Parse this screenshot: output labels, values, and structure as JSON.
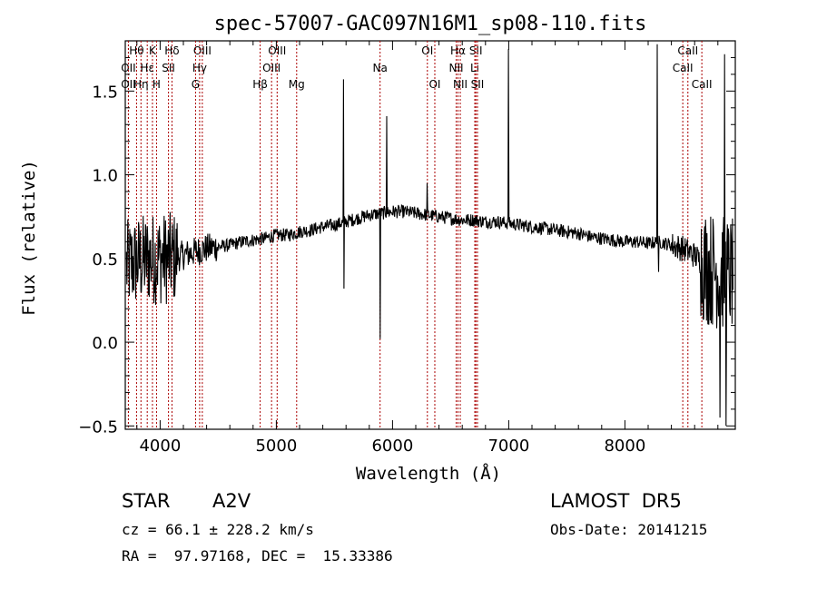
{
  "chart_data": {
    "type": "line",
    "title": "spec-57007-GAC097N16M1_sp08-110.fits",
    "xlabel": "Wavelength (Å)",
    "ylabel": "Flux (relative)",
    "xlim": [
      3700,
      8950
    ],
    "ylim": [
      -0.52,
      1.8
    ],
    "xticks": [
      4000,
      5000,
      6000,
      7000,
      8000
    ],
    "yticks": [
      -0.5,
      0.0,
      0.5,
      1.0,
      1.5
    ],
    "xtick_labels": [
      "4000",
      "5000",
      "6000",
      "7000",
      "8000"
    ],
    "ytick_labels": [
      "−0.5",
      "0.0",
      "0.5",
      "1.0",
      "1.5"
    ],
    "grid": false,
    "line_color": "#000000",
    "marker_color": "#aa0000",
    "continuum": {
      "x": [
        3700,
        3800,
        3900,
        4000,
        4100,
        4200,
        4300,
        4400,
        4500,
        4600,
        4700,
        4800,
        4900,
        5000,
        5100,
        5200,
        5300,
        5400,
        5500,
        5600,
        5700,
        5800,
        5900,
        6000,
        6100,
        6200,
        6300,
        6400,
        6500,
        6600,
        6700,
        6800,
        6900,
        7000,
        7100,
        7200,
        7300,
        7400,
        7500,
        7600,
        7700,
        7800,
        7900,
        8000,
        8100,
        8200,
        8300,
        8400,
        8500,
        8600,
        8700,
        8800,
        8900
      ],
      "y": [
        0.45,
        0.48,
        0.5,
        0.5,
        0.5,
        0.52,
        0.54,
        0.56,
        0.57,
        0.58,
        0.6,
        0.61,
        0.62,
        0.64,
        0.64,
        0.66,
        0.67,
        0.69,
        0.7,
        0.72,
        0.74,
        0.76,
        0.77,
        0.78,
        0.78,
        0.77,
        0.76,
        0.75,
        0.74,
        0.73,
        0.73,
        0.72,
        0.72,
        0.71,
        0.7,
        0.69,
        0.68,
        0.67,
        0.66,
        0.65,
        0.63,
        0.62,
        0.61,
        0.6,
        0.6,
        0.59,
        0.6,
        0.58,
        0.56,
        0.52,
        0.45,
        0.42,
        0.4
      ]
    },
    "spikes": [
      {
        "x": 5577,
        "y": 1.57
      },
      {
        "x": 5583,
        "y": 0.32
      },
      {
        "x": 5893,
        "y": 0.02
      },
      {
        "x": 5950,
        "y": 1.35
      },
      {
        "x": 6300,
        "y": 0.95
      },
      {
        "x": 7000,
        "y": 1.75
      },
      {
        "x": 8280,
        "y": 1.78
      },
      {
        "x": 8290,
        "y": 0.42
      },
      {
        "x": 8820,
        "y": -0.45
      },
      {
        "x": 8860,
        "y": 1.72
      },
      {
        "x": 8870,
        "y": -0.5
      }
    ],
    "line_markers": [
      {
        "label": "Hθ",
        "x": 3797,
        "row": 0
      },
      {
        "label": "OII",
        "x": 3727,
        "row": 1
      },
      {
        "label": "OII",
        "x": 3727,
        "row": 2
      },
      {
        "label": "K",
        "x": 3934,
        "row": 0
      },
      {
        "label": "Hε",
        "x": 3889,
        "row": 1
      },
      {
        "label": "Hη",
        "x": 3835,
        "row": 2
      },
      {
        "label": "H",
        "x": 3969,
        "row": 2
      },
      {
        "label": "Hδ",
        "x": 4102,
        "row": 0
      },
      {
        "label": "SII",
        "x": 4072,
        "row": 1
      },
      {
        "label": "OIII",
        "x": 4363,
        "row": 0
      },
      {
        "label": "Hγ",
        "x": 4340,
        "row": 1
      },
      {
        "label": "G",
        "x": 4305,
        "row": 2
      },
      {
        "label": "OIII",
        "x": 5007,
        "row": 0
      },
      {
        "label": "OIII",
        "x": 4959,
        "row": 1
      },
      {
        "label": "Hβ",
        "x": 4861,
        "row": 2
      },
      {
        "label": "Mg",
        "x": 5175,
        "row": 2
      },
      {
        "label": "Na",
        "x": 5893,
        "row": 1
      },
      {
        "label": "OI",
        "x": 6300,
        "row": 0
      },
      {
        "label": "OI",
        "x": 6364,
        "row": 2
      },
      {
        "label": "Hα",
        "x": 6563,
        "row": 0
      },
      {
        "label": "SII",
        "x": 6717,
        "row": 0
      },
      {
        "label": "NII",
        "x": 6548,
        "row": 1
      },
      {
        "label": "Li",
        "x": 6708,
        "row": 1
      },
      {
        "label": "NII",
        "x": 6583,
        "row": 2
      },
      {
        "label": "SII",
        "x": 6731,
        "row": 2
      },
      {
        "label": "CaII",
        "x": 8542,
        "row": 0
      },
      {
        "label": "CaII",
        "x": 8498,
        "row": 1
      },
      {
        "label": "CaII",
        "x": 8662,
        "row": 2
      }
    ]
  },
  "info": {
    "object_class": "STAR",
    "subclass": "A2V",
    "survey": "LAMOST  DR5",
    "cz_line": "cz = 66.1 ± 228.2 km/s",
    "obs_date": "Obs-Date: 20141215",
    "coords": "RA =  97.97168, DEC =  15.33386"
  }
}
